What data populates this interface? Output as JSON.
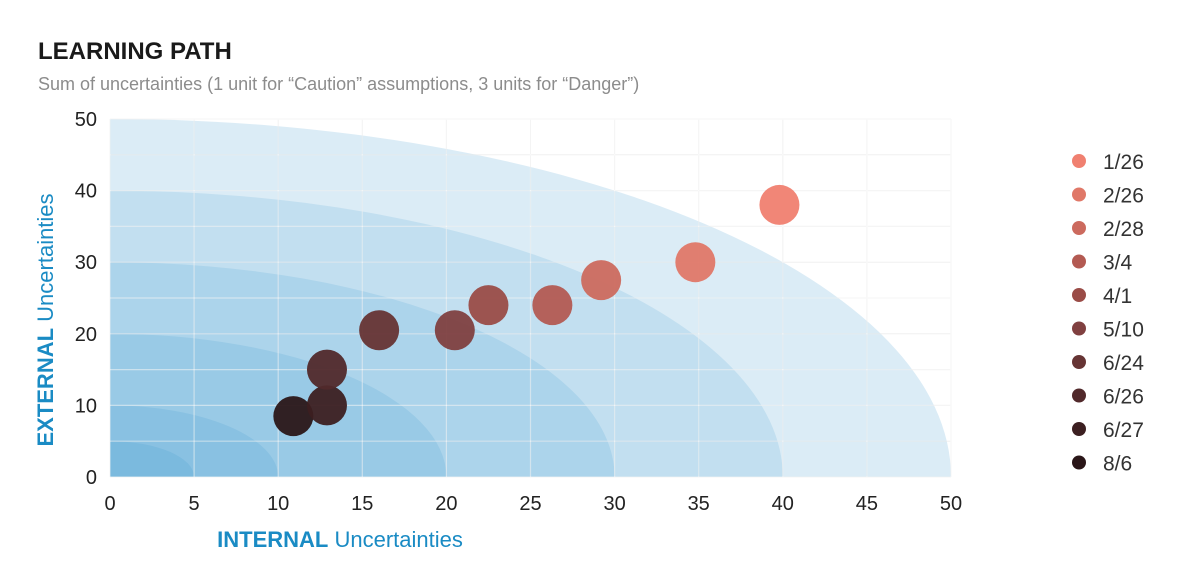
{
  "chart_data": {
    "type": "scatter",
    "title": "LEARNING PATH",
    "subtitle": "Sum of uncertainties (1 unit for “Caution” assumptions, 3 units for “Danger”)",
    "xlabel": {
      "strong": "INTERNAL",
      "rest": "Uncertainties"
    },
    "ylabel": {
      "strong": "EXTERNAL",
      "rest": "Uncertainties"
    },
    "xlim": [
      0,
      50
    ],
    "ylim": [
      0,
      50
    ],
    "xticks": [
      0,
      5,
      10,
      15,
      20,
      25,
      30,
      35,
      40,
      45,
      50
    ],
    "yticks": [
      0,
      10,
      20,
      30,
      40,
      50
    ],
    "grid": true,
    "background_bands": [
      50,
      40,
      30,
      20,
      10,
      5
    ],
    "legend_position": "right",
    "series": [
      {
        "name": "1/26",
        "x": 39.8,
        "y": 38,
        "color": "#f08070"
      },
      {
        "name": "2/26",
        "x": 34.8,
        "y": 30,
        "color": "#e07868"
      },
      {
        "name": "2/28",
        "x": 29.2,
        "y": 27.5,
        "color": "#cc6a5e"
      },
      {
        "name": "3/4",
        "x": 26.3,
        "y": 24,
        "color": "#b35a52"
      },
      {
        "name": "4/1",
        "x": 22.5,
        "y": 24,
        "color": "#9a4c47"
      },
      {
        "name": "5/10",
        "x": 20.5,
        "y": 20.5,
        "color": "#804040"
      },
      {
        "name": "6/24",
        "x": 16,
        "y": 20.5,
        "color": "#663434"
      },
      {
        "name": "6/26",
        "x": 12.9,
        "y": 15,
        "color": "#51292b"
      },
      {
        "name": "6/27",
        "x": 12.9,
        "y": 10,
        "color": "#3c1f21"
      },
      {
        "name": "8/6",
        "x": 10.9,
        "y": 8.5,
        "color": "#2a1618"
      }
    ]
  }
}
